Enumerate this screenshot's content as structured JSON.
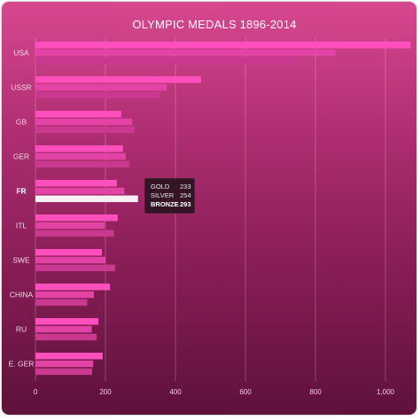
{
  "chart_data": {
    "type": "bar",
    "title": "OLYMPIC MEDALS 1896-2014",
    "categories": [
      "USA",
      "USSR",
      "GB",
      "GER",
      "FR",
      "ITL",
      "SWE",
      "CHINA",
      "RU",
      "E. GER"
    ],
    "series": [
      {
        "name": "GOLD",
        "values": [
          1072,
          473,
          245,
          250,
          233,
          235,
          190,
          213,
          180,
          192
        ]
      },
      {
        "name": "SILVER",
        "values": [
          858,
          375,
          276,
          258,
          254,
          198,
          200,
          167,
          161,
          165
        ]
      },
      {
        "name": "BRONZE",
        "values": [
          750,
          355,
          282,
          268,
          293,
          224,
          228,
          148,
          175,
          162
        ]
      }
    ],
    "xlim": [
      0,
      1080
    ],
    "xticks": [
      0,
      200,
      400,
      600,
      800,
      1000
    ],
    "xtick_labels": [
      "0",
      "200",
      "400",
      "600",
      "800",
      "1,000"
    ],
    "grid": true,
    "highlight": {
      "category": "FR",
      "series": "BRONZE"
    },
    "tooltip": {
      "rows": [
        {
          "label": "GOLD",
          "value": "233"
        },
        {
          "label": "SILVER",
          "value": "254"
        },
        {
          "label": "BRONZE",
          "value": "293"
        }
      ]
    },
    "colors": {
      "gold_bar": "#ff4fbd",
      "silver_bar": "#e443a6",
      "bronze_bar": "#c9398f",
      "highlight_bar": "#f9eef3",
      "tooltip_bg": "#2b1220",
      "grid": "#ffffff"
    }
  }
}
